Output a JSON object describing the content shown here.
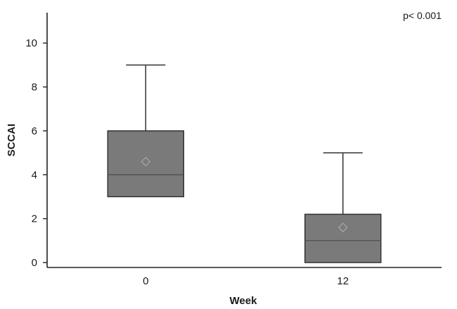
{
  "chart_data": {
    "type": "box",
    "xlabel": "Week",
    "ylabel": "SCCAI",
    "ylim": [
      0,
      11
    ],
    "y_ticks": [
      0,
      2,
      4,
      6,
      8,
      10
    ],
    "categories": [
      "0",
      "12"
    ],
    "boxes": [
      {
        "category": "0",
        "whisker_low": 3,
        "q1": 3,
        "median": 4,
        "q3": 6,
        "whisker_high": 9,
        "mean": 4.6
      },
      {
        "category": "12",
        "whisker_low": 0,
        "q1": 0,
        "median": 1,
        "q3": 2.2,
        "whisker_high": 5,
        "mean": 1.6
      }
    ],
    "annotation": "p< 0.001",
    "grid": false,
    "colors": {
      "box_fill": "#7a7a7a",
      "box_stroke": "#333333",
      "axis": "#222222"
    }
  }
}
